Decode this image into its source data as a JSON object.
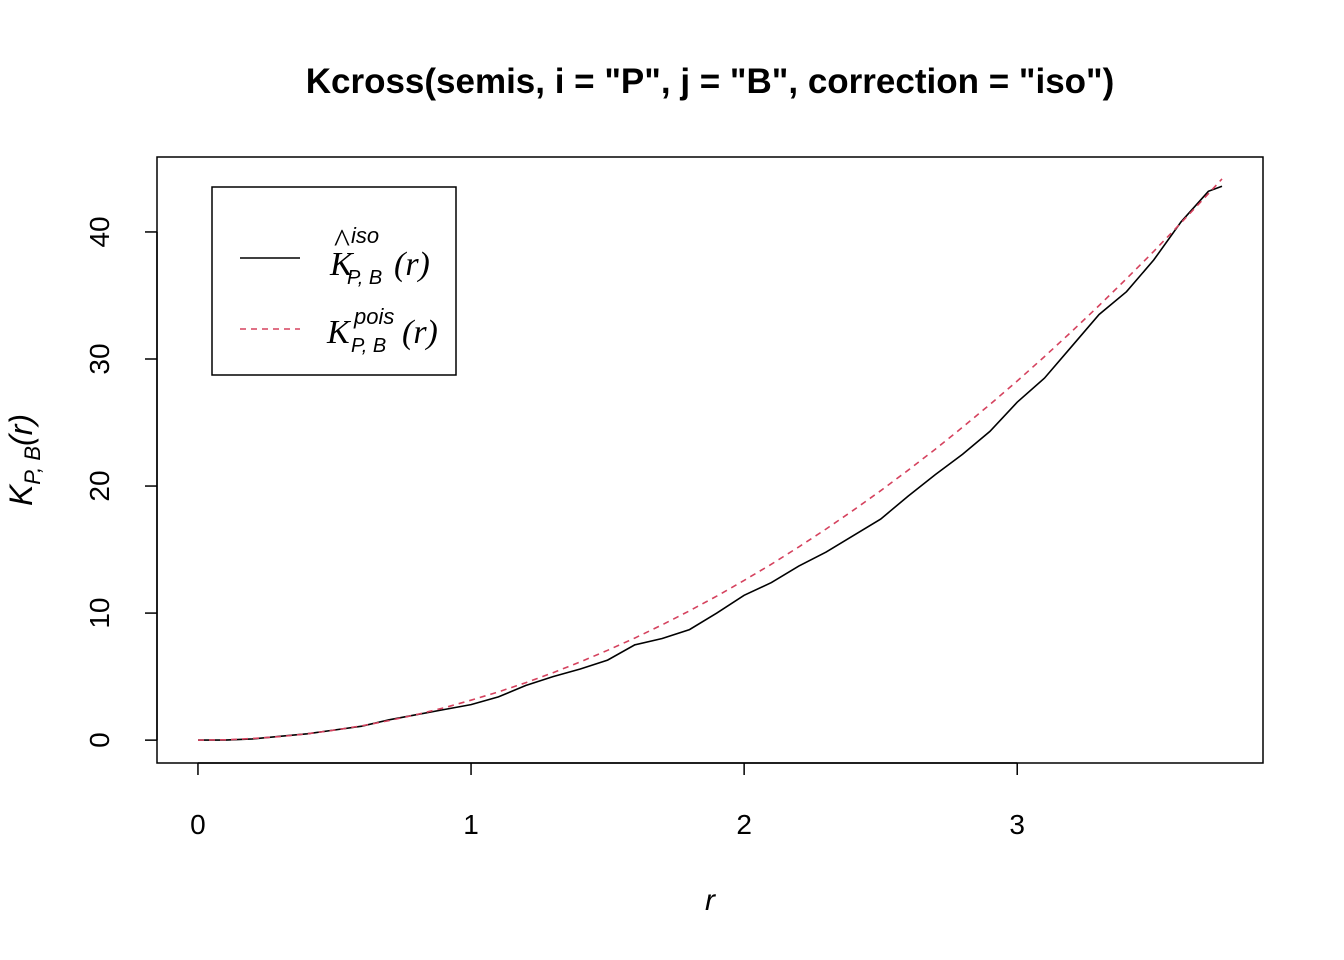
{
  "chart_data": {
    "type": "line",
    "title": "Kcross(semis, i = \"P\", j = \"B\", correction = \"iso\")",
    "xlabel": "r",
    "ylabel": {
      "base": "K",
      "sub": "P, B",
      "arg": "(r)"
    },
    "xlim": [
      -0.15,
      3.9
    ],
    "ylim": [
      -1.8,
      45.9
    ],
    "xticks": [
      0,
      1,
      2,
      3
    ],
    "yticks": [
      0,
      10,
      20,
      30,
      40
    ],
    "legend_position": "top-left",
    "series": [
      {
        "name": "K-hat iso",
        "label": {
          "base": "K",
          "hat": "^",
          "sup": "iso",
          "sub": "P, B",
          "arg": "(r)"
        },
        "color": "#000000",
        "dash": "solid",
        "x": [
          0,
          0.1,
          0.2,
          0.3,
          0.4,
          0.5,
          0.6,
          0.7,
          0.8,
          0.9,
          1.0,
          1.1,
          1.2,
          1.3,
          1.4,
          1.5,
          1.6,
          1.7,
          1.8,
          1.9,
          2.0,
          2.1,
          2.2,
          2.3,
          2.4,
          2.5,
          2.6,
          2.7,
          2.8,
          2.9,
          3.0,
          3.1,
          3.2,
          3.3,
          3.4,
          3.5,
          3.6,
          3.7,
          3.75
        ],
        "y": [
          0,
          0.0,
          0.1,
          0.3,
          0.5,
          0.8,
          1.1,
          1.6,
          2.0,
          2.4,
          2.8,
          3.4,
          4.3,
          5.0,
          5.6,
          6.3,
          7.5,
          8.0,
          8.7,
          10.0,
          11.4,
          12.4,
          13.7,
          14.8,
          16.1,
          17.4,
          19.2,
          20.9,
          22.5,
          24.3,
          26.6,
          28.5,
          31.0,
          33.5,
          35.3,
          37.8,
          40.8,
          43.2,
          43.6
        ]
      },
      {
        "name": "K pois",
        "label": {
          "base": "K",
          "sup": "pois",
          "sub": "P, B",
          "arg": "(r)"
        },
        "color": "#d5425e",
        "dash": "dashed",
        "x": [
          0,
          0.1,
          0.2,
          0.3,
          0.4,
          0.5,
          0.6,
          0.7,
          0.8,
          0.9,
          1.0,
          1.1,
          1.2,
          1.3,
          1.4,
          1.5,
          1.6,
          1.7,
          1.8,
          1.9,
          2.0,
          2.1,
          2.2,
          2.3,
          2.4,
          2.5,
          2.6,
          2.7,
          2.8,
          2.9,
          3.0,
          3.1,
          3.2,
          3.3,
          3.4,
          3.5,
          3.6,
          3.7,
          3.75
        ],
        "y": [
          0,
          0.03,
          0.13,
          0.28,
          0.5,
          0.79,
          1.13,
          1.54,
          2.01,
          2.54,
          3.14,
          3.8,
          4.52,
          5.31,
          6.16,
          7.07,
          8.04,
          9.08,
          10.18,
          11.34,
          12.57,
          13.85,
          15.21,
          16.62,
          18.1,
          19.63,
          21.24,
          22.9,
          24.63,
          26.42,
          28.27,
          30.19,
          32.17,
          34.21,
          36.32,
          38.48,
          40.72,
          43.01,
          44.18
        ]
      }
    ]
  }
}
